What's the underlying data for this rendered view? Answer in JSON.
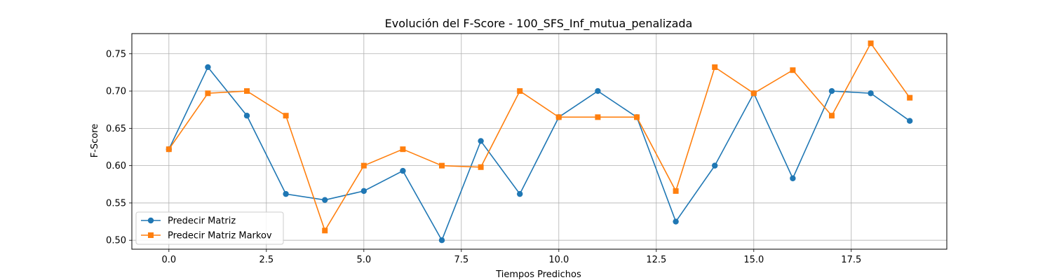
{
  "chart_data": {
    "type": "line",
    "title": "Evolución del F-Score - 100_SFS_Inf_mutua_penalizada",
    "xlabel": "Tiempos Predichos",
    "ylabel": "F-Score",
    "xlim": [
      -0.95,
      19.95
    ],
    "ylim": [
      0.488,
      0.777
    ],
    "xticks": [
      0.0,
      2.5,
      5.0,
      7.5,
      10.0,
      12.5,
      15.0,
      17.5
    ],
    "xtick_labels": [
      "0.0",
      "2.5",
      "5.0",
      "7.5",
      "10.0",
      "12.5",
      "15.0",
      "17.5"
    ],
    "yticks": [
      0.5,
      0.55,
      0.6,
      0.65,
      0.7,
      0.75
    ],
    "ytick_labels": [
      "0.50",
      "0.55",
      "0.60",
      "0.65",
      "0.70",
      "0.75"
    ],
    "grid": true,
    "legend_position": "lower-left",
    "x": [
      0,
      1,
      2,
      3,
      4,
      5,
      6,
      7,
      8,
      9,
      10,
      11,
      12,
      13,
      14,
      15,
      16,
      17,
      18,
      19
    ],
    "series": [
      {
        "name": "Predecir Matriz",
        "color": "#1f77b4",
        "marker": "circle",
        "values": [
          0.622,
          0.732,
          0.667,
          0.562,
          0.554,
          0.566,
          0.593,
          0.5,
          0.633,
          0.562,
          0.665,
          0.7,
          0.665,
          0.525,
          0.6,
          0.697,
          0.583,
          0.7,
          0.697,
          0.66
        ]
      },
      {
        "name": "Predecir Matriz Markov",
        "color": "#ff7f0e",
        "marker": "square",
        "values": [
          0.622,
          0.697,
          0.7,
          0.667,
          0.513,
          0.6,
          0.622,
          0.6,
          0.598,
          0.7,
          0.665,
          0.665,
          0.665,
          0.566,
          0.732,
          0.697,
          0.728,
          0.667,
          0.764,
          0.691
        ]
      }
    ]
  }
}
